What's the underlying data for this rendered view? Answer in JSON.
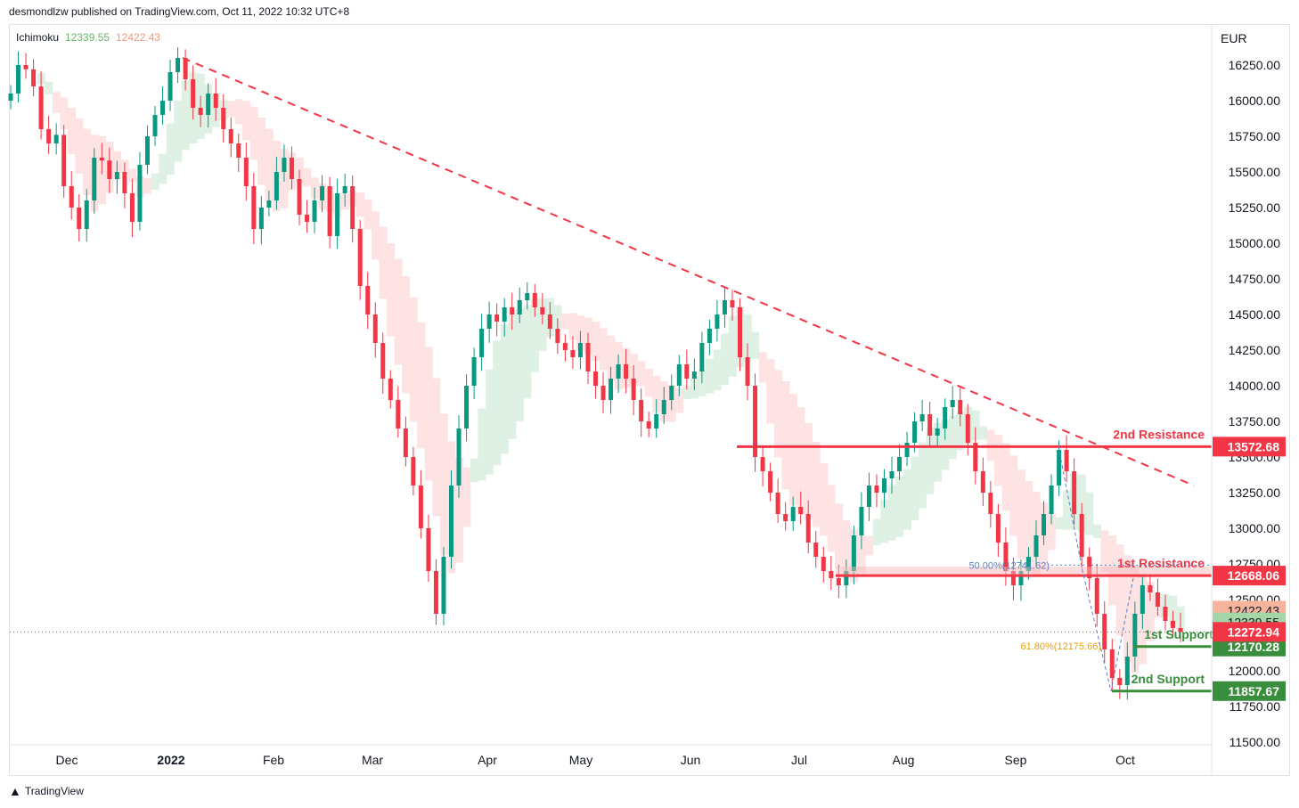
{
  "header": {
    "published_by": "desmondlzw published on TradingView.com, Oct 11, 2022 10:32 UTC+8"
  },
  "footer": {
    "brand": "TradingView"
  },
  "colors": {
    "bull": "#089981",
    "bear": "#f23645",
    "resistance": "#f23645",
    "support": "#388e3c",
    "trend": "#f23645",
    "cloud_up": "#d7eedd",
    "cloud_down": "#fddcdc",
    "fib50": "#5b7fbf",
    "fib618": "#e8a10a"
  },
  "chart_data": {
    "type": "candlestick",
    "currency": "EUR",
    "indicator": {
      "name": "Ichimoku",
      "value1": "12339.55",
      "value2": "12422.43"
    },
    "ylim": [
      11500,
      16500
    ],
    "y_ticks": [
      "16250.00",
      "16000.00",
      "15750.00",
      "15500.00",
      "15250.00",
      "15000.00",
      "14750.00",
      "14500.00",
      "14250.00",
      "14000.00",
      "13750.00",
      "13500.00",
      "13250.00",
      "13000.00",
      "12750.00",
      "12500.00",
      "12250.00",
      "12000.00",
      "11750.00",
      "11500.00"
    ],
    "x_labels": [
      "Dec",
      "2022",
      "Feb",
      "Mar",
      "Apr",
      "May",
      "Jun",
      "Jul",
      "Aug",
      "Sep",
      "Oct"
    ],
    "levels": [
      {
        "name": "2nd Resistance",
        "value": 13572.68,
        "label": "13572.68",
        "kind": "resistance"
      },
      {
        "name": "1st Resistance",
        "value": 12668.06,
        "label": "12668.06",
        "kind": "resistance"
      },
      {
        "name": "1st Support",
        "value": 12170.28,
        "label": "12170.28",
        "kind": "support"
      },
      {
        "name": "2nd Support",
        "value": 11857.67,
        "label": "11857.67",
        "kind": "support"
      }
    ],
    "price_tags": [
      {
        "label": "12422.43",
        "value": 12422.43,
        "color": "#f7b49c"
      },
      {
        "label": "12339.55",
        "value": 12339.55,
        "color": "#a5d6a7"
      },
      {
        "label": "12272.94",
        "value": 12272.94,
        "color": "#f23645"
      }
    ],
    "fib": [
      {
        "label": "50.00%(12741.62)",
        "value": 12741.62
      },
      {
        "label": "61.80%(12175.66)",
        "value": 12175.66
      }
    ],
    "trendline": {
      "start_value": 16300,
      "end_value": 13300
    },
    "closes": [
      16050,
      16250,
      16220,
      16100,
      15800,
      15700,
      15760,
      15400,
      15250,
      15100,
      15300,
      15600,
      15580,
      15450,
      15500,
      15350,
      15150,
      15550,
      15750,
      15900,
      16000,
      16200,
      16300,
      16150,
      15950,
      15900,
      16050,
      15950,
      15800,
      15700,
      15600,
      15400,
      15100,
      15250,
      15300,
      15500,
      15600,
      15450,
      15200,
      15150,
      15300,
      15400,
      15050,
      15350,
      15400,
      15100,
      14700,
      14500,
      14300,
      14050,
      13900,
      13700,
      13500,
      13300,
      13000,
      12700,
      12400,
      12800,
      13300,
      13700,
      14000,
      14200,
      14400,
      14500,
      14450,
      14550,
      14500,
      14600,
      14650,
      14550,
      14500,
      14400,
      14300,
      14250,
      14200,
      14300,
      14100,
      14000,
      13900,
      14050,
      14150,
      14050,
      13900,
      13750,
      13700,
      13800,
      13900,
      14000,
      14150,
      14050,
      14100,
      14300,
      14400,
      14500,
      14600,
      14550,
      14200,
      14000,
      13500,
      13400,
      13250,
      13100,
      13050,
      13150,
      13100,
      12900,
      12800,
      12700,
      12650,
      12600,
      12700,
      12950,
      13150,
      13300,
      13250,
      13350,
      13400,
      13500,
      13600,
      13750,
      13800,
      13650,
      13700,
      13850,
      13900,
      13800,
      13600,
      13400,
      13250,
      13100,
      12900,
      12700,
      12600,
      12700,
      12800,
      12950,
      13100,
      13300,
      13550,
      13400,
      13100,
      12800,
      12650,
      12400,
      12150,
      11950,
      11900,
      12100,
      12400,
      12600,
      12550,
      12450,
      12350,
      12300,
      12273
    ]
  }
}
